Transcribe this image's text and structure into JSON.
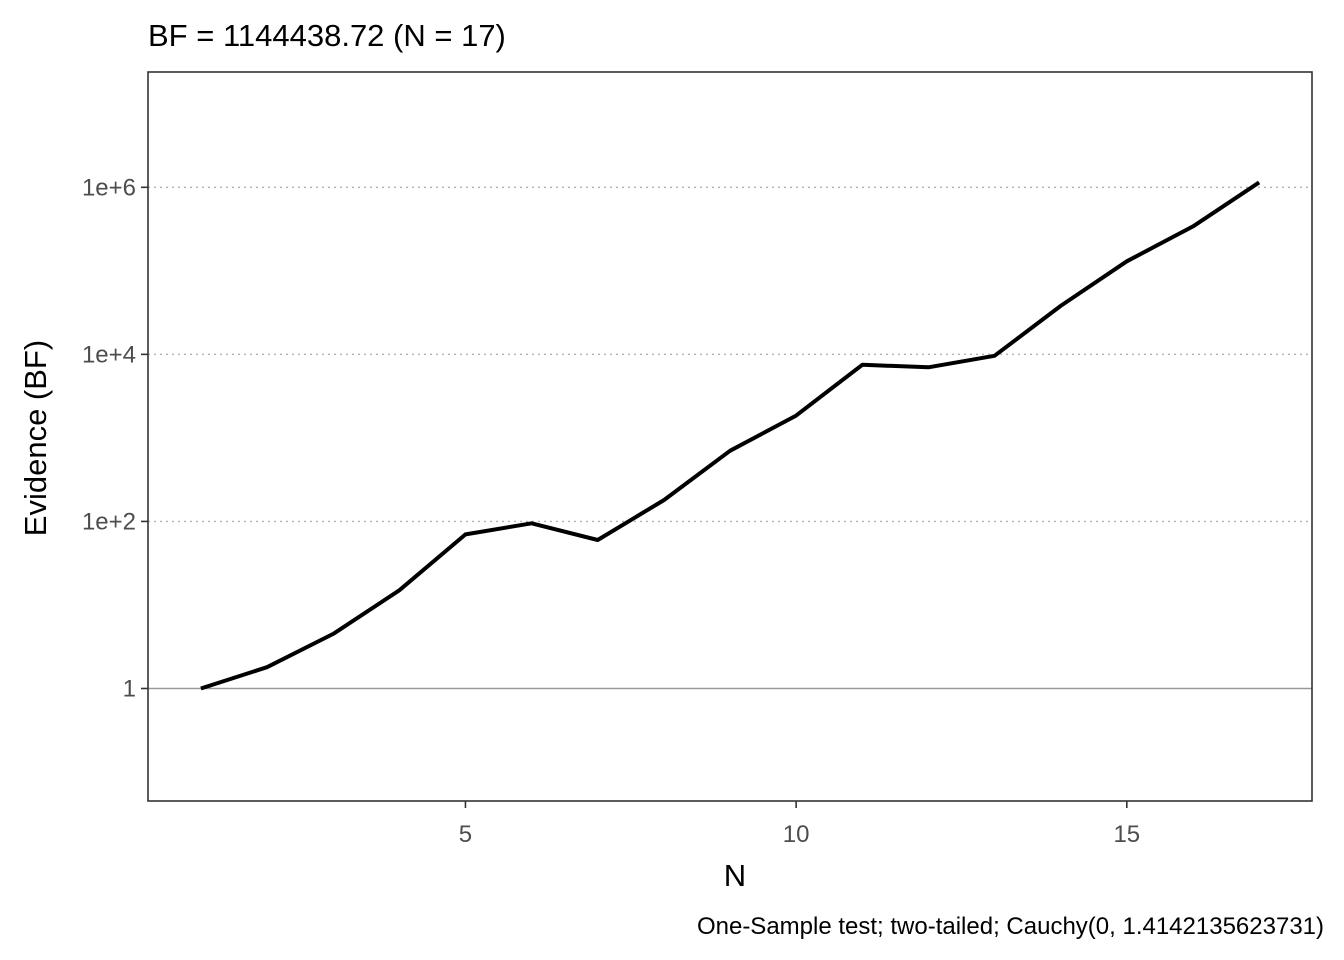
{
  "chart_data": {
    "type": "line",
    "title": "BF = 1144438.72 (N = 17)",
    "xlabel": "N",
    "ylabel": "Evidence (BF)",
    "caption": "One-Sample test; two-tailed; Cauchy(0, 1.4142135623731)",
    "y_scale": "log10",
    "xlim": [
      0.2,
      17.8
    ],
    "ylim": [
      0.045,
      24000000
    ],
    "x_ticks": [
      5,
      10,
      15
    ],
    "x_tick_labels": [
      "5",
      "10",
      "15"
    ],
    "y_ticks": [
      1,
      100,
      10000,
      1000000
    ],
    "y_tick_labels": [
      "1",
      "1e+2",
      "1e+4",
      "1e+6"
    ],
    "reference_line_y": 1,
    "grid": "horizontal-dotted",
    "series": [
      {
        "x": [
          1,
          2,
          3,
          4,
          5,
          6,
          7,
          8,
          9,
          10,
          11,
          12,
          13,
          14,
          15,
          16,
          17
        ],
        "y": [
          1,
          1.8,
          4.5,
          15,
          70,
          95,
          60,
          180,
          700,
          1850,
          7500,
          7000,
          9600,
          38000,
          130000,
          340000,
          1144438.72
        ]
      }
    ],
    "colors": {
      "line": "#000000",
      "grid": "#b3b3b3",
      "reference": "#999999",
      "frame": "#333333"
    }
  }
}
